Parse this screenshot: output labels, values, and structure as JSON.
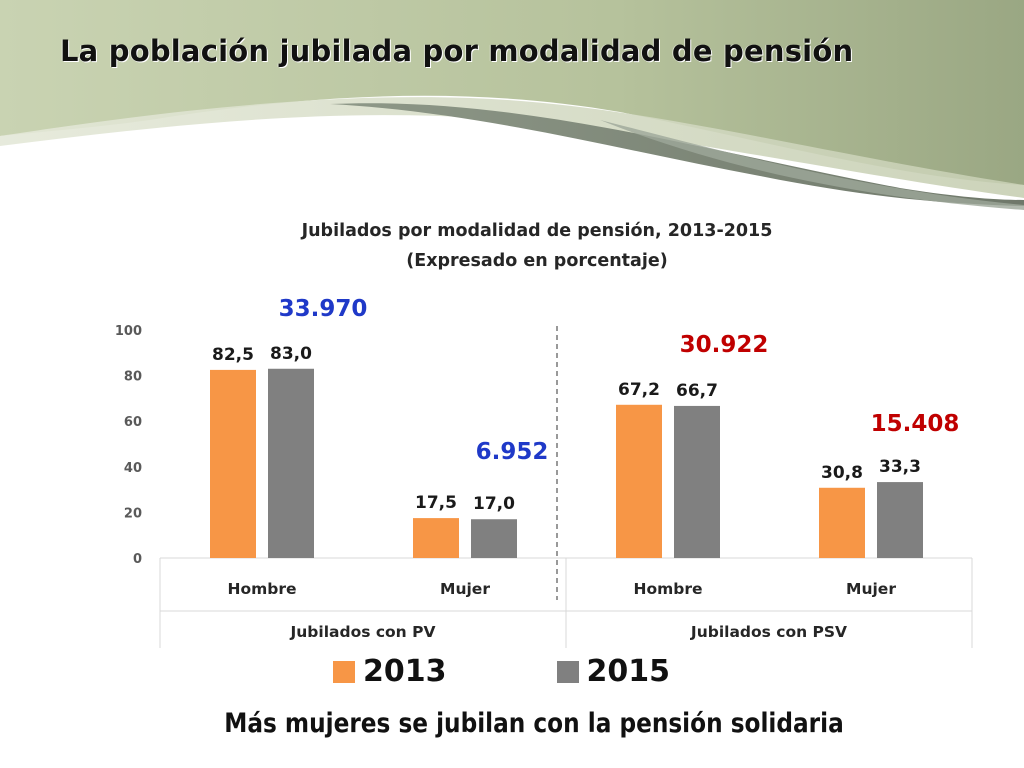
{
  "slide": {
    "title": "La población jubilada por modalidad de pensión",
    "footer_note": "Más mujeres se jubilan con la pensión solidaria"
  },
  "colors": {
    "series_2013": "#f79646",
    "series_2015": "#808080",
    "annotation_pv": "#1f39c8",
    "annotation_psv": "#c00000"
  },
  "chart_data": {
    "type": "bar",
    "title": "Jubilados por modalidad de pensión, 2013-2015",
    "subtitle": "(Expresado en porcentaje)",
    "ylim": [
      0,
      100
    ],
    "yticks": [
      0,
      20,
      40,
      60,
      80,
      100
    ],
    "grid": false,
    "legend_position": "bottom",
    "groups": [
      "Jubilados con PV",
      "Jubilados con PSV"
    ],
    "categories": [
      "Hombre",
      "Mujer",
      "Hombre",
      "Mujer"
    ],
    "category_group": [
      0,
      0,
      1,
      1
    ],
    "series": [
      {
        "name": "2013",
        "values": [
          82.5,
          17.5,
          67.2,
          30.8
        ],
        "labels": [
          "82,5",
          "17,5",
          "67,2",
          "30,8"
        ]
      },
      {
        "name": "2015",
        "values": [
          83.0,
          17.0,
          66.7,
          33.3
        ],
        "labels": [
          "83,0",
          "17,0",
          "66,7",
          "33,3"
        ]
      }
    ],
    "annotations": [
      {
        "text": "33.970",
        "color": "annotation_pv",
        "near_category": 0
      },
      {
        "text": "6.952",
        "color": "annotation_pv",
        "near_category": 1
      },
      {
        "text": "30.922",
        "color": "annotation_psv",
        "near_category": 2
      },
      {
        "text": "15.408",
        "color": "annotation_psv",
        "near_category": 3
      }
    ]
  }
}
